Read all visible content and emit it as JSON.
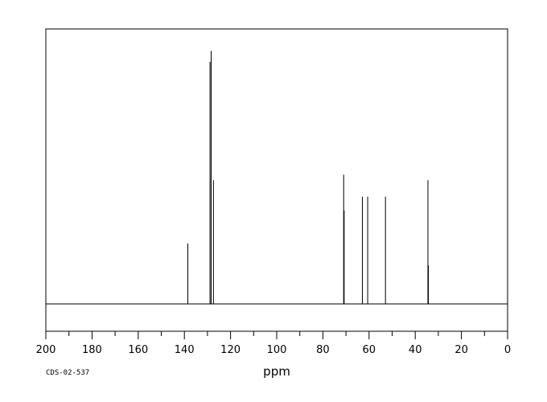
{
  "chart_data": {
    "type": "line",
    "title": "",
    "xlabel": "ppm",
    "ylabel": "",
    "xlim": [
      200,
      0
    ],
    "x_direction": "reversed",
    "ylim": [
      0,
      1
    ],
    "grid": false,
    "legend": "none",
    "x_ticks": [
      200,
      180,
      160,
      140,
      120,
      100,
      80,
      60,
      40,
      20,
      0
    ],
    "x_tick_labels": [
      "200",
      "180",
      "160",
      "140",
      "120",
      "100",
      "80",
      "60",
      "40",
      "20",
      "0"
    ],
    "series": [
      {
        "peaks": [
          {
            "x": 138.5,
            "y": 0.22
          },
          {
            "x": 128.9,
            "y": 0.88
          },
          {
            "x": 128.4,
            "y": 0.92
          },
          {
            "x": 127.4,
            "y": 0.45
          },
          {
            "x": 71.0,
            "y": 0.47
          },
          {
            "x": 70.8,
            "y": 0.34
          },
          {
            "x": 62.9,
            "y": 0.39
          },
          {
            "x": 60.6,
            "y": 0.39
          },
          {
            "x": 52.9,
            "y": 0.39
          },
          {
            "x": 34.5,
            "y": 0.45
          },
          {
            "x": 34.3,
            "y": 0.14
          }
        ]
      }
    ],
    "annotations": [
      {
        "text": "CDS-02-537",
        "position": "bottom-left"
      }
    ]
  }
}
